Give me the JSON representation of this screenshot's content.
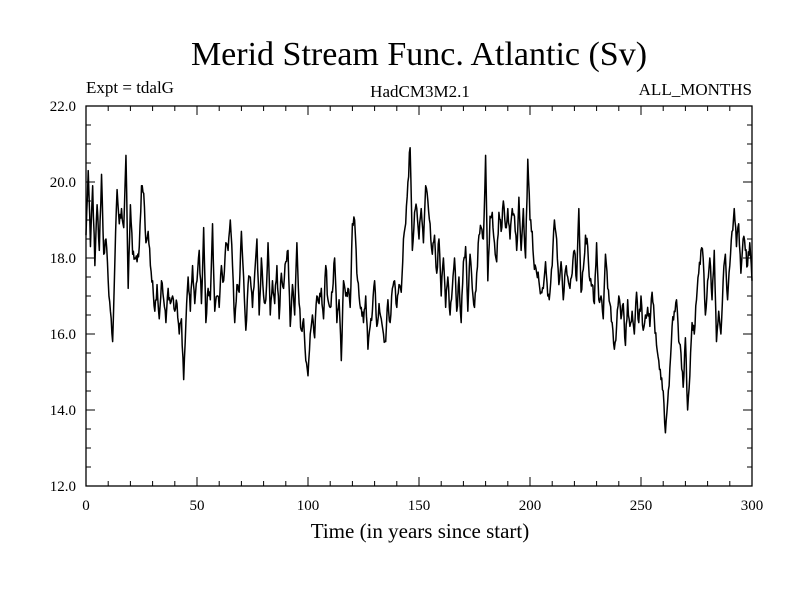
{
  "chart_data": {
    "type": "line",
    "title": "Merid Stream Func. Atlantic (Sv)",
    "left_label": "Expt = tdalG",
    "center_label": "HadCM3M2.1",
    "right_label": "ALL_MONTHS",
    "xlabel": "Time (in years since start)",
    "ylabel": "",
    "xlim": [
      0,
      300
    ],
    "ylim": [
      12.0,
      22.0
    ],
    "x_ticks": [
      "0",
      "50",
      "100",
      "150",
      "200",
      "250",
      "300"
    ],
    "y_ticks": [
      "12.0",
      "14.0",
      "16.0",
      "18.0",
      "20.0",
      "22.0"
    ],
    "grid": false,
    "series": [
      {
        "name": "Merid Stream Func. Atlantic",
        "keypoints": [
          [
            0,
            18.6
          ],
          [
            1,
            20.3
          ],
          [
            2,
            18.3
          ],
          [
            3,
            19.9
          ],
          [
            4,
            17.8
          ],
          [
            5,
            19.4
          ],
          [
            6,
            18.2
          ],
          [
            7,
            20.2
          ],
          [
            8,
            18.1
          ],
          [
            9,
            18.5
          ],
          [
            10,
            17.4
          ],
          [
            11,
            16.6
          ],
          [
            12,
            15.8
          ],
          [
            13,
            17.9
          ],
          [
            14,
            19.8
          ],
          [
            15,
            18.9
          ],
          [
            16,
            19.3
          ],
          [
            17,
            18.8
          ],
          [
            18,
            20.7
          ],
          [
            19,
            17.2
          ],
          [
            20,
            19.4
          ],
          [
            21,
            18.1
          ],
          [
            22,
            18.0
          ],
          [
            23,
            17.9
          ],
          [
            24,
            18.3
          ],
          [
            25,
            19.9
          ],
          [
            26,
            19.7
          ],
          [
            27,
            18.4
          ],
          [
            28,
            18.7
          ],
          [
            29,
            17.8
          ],
          [
            30,
            17.4
          ],
          [
            31,
            16.6
          ],
          [
            32,
            17.3
          ],
          [
            33,
            16.4
          ],
          [
            34,
            17.4
          ],
          [
            35,
            16.9
          ],
          [
            36,
            16.3
          ],
          [
            37,
            17.2
          ],
          [
            38,
            16.8
          ],
          [
            39,
            17.0
          ],
          [
            40,
            16.6
          ],
          [
            41,
            16.8
          ],
          [
            42,
            16.0
          ],
          [
            43,
            16.4
          ],
          [
            44,
            14.8
          ],
          [
            45,
            16.3
          ],
          [
            46,
            17.5
          ],
          [
            47,
            16.6
          ],
          [
            48,
            17.8
          ],
          [
            49,
            16.8
          ],
          [
            50,
            17.4
          ],
          [
            51,
            18.2
          ],
          [
            52,
            16.8
          ],
          [
            53,
            18.8
          ],
          [
            54,
            16.3
          ],
          [
            55,
            17.2
          ],
          [
            56,
            16.9
          ],
          [
            57,
            18.9
          ],
          [
            58,
            16.6
          ],
          [
            59,
            17.0
          ],
          [
            60,
            16.7
          ],
          [
            61,
            17.8
          ],
          [
            62,
            17.4
          ],
          [
            63,
            18.4
          ],
          [
            64,
            18.2
          ],
          [
            65,
            19.0
          ],
          [
            66,
            17.8
          ],
          [
            67,
            16.3
          ],
          [
            68,
            17.3
          ],
          [
            69,
            17.1
          ],
          [
            70,
            18.7
          ],
          [
            71,
            17.5
          ],
          [
            72,
            16.1
          ],
          [
            73,
            17.3
          ],
          [
            74,
            17.5
          ],
          [
            75,
            16.7
          ],
          [
            76,
            17.6
          ],
          [
            77,
            18.5
          ],
          [
            78,
            16.5
          ],
          [
            79,
            18.0
          ],
          [
            80,
            17.0
          ],
          [
            81,
            16.9
          ],
          [
            82,
            18.4
          ],
          [
            83,
            16.5
          ],
          [
            84,
            17.4
          ],
          [
            85,
            16.8
          ],
          [
            86,
            17.8
          ],
          [
            87,
            16.4
          ],
          [
            88,
            17.6
          ],
          [
            89,
            17.2
          ],
          [
            90,
            17.9
          ],
          [
            91,
            18.2
          ],
          [
            92,
            16.2
          ],
          [
            93,
            17.3
          ],
          [
            94,
            16.5
          ],
          [
            95,
            18.4
          ],
          [
            96,
            16.8
          ],
          [
            97,
            16.1
          ],
          [
            98,
            16.4
          ],
          [
            99,
            15.3
          ],
          [
            100,
            14.9
          ],
          [
            101,
            16.0
          ],
          [
            102,
            16.5
          ],
          [
            103,
            15.9
          ],
          [
            104,
            17.0
          ],
          [
            105,
            16.8
          ],
          [
            106,
            17.2
          ],
          [
            107,
            16.4
          ],
          [
            108,
            17.8
          ],
          [
            109,
            16.9
          ],
          [
            110,
            16.7
          ],
          [
            111,
            17.1
          ],
          [
            112,
            18.0
          ],
          [
            113,
            16.3
          ],
          [
            114,
            16.9
          ],
          [
            115,
            15.3
          ],
          [
            116,
            17.4
          ],
          [
            117,
            17.0
          ],
          [
            118,
            17.2
          ],
          [
            119,
            16.7
          ],
          [
            120,
            18.9
          ],
          [
            121,
            19.0
          ],
          [
            122,
            17.6
          ],
          [
            123,
            17.0
          ],
          [
            124,
            16.7
          ],
          [
            125,
            16.3
          ],
          [
            126,
            17.0
          ],
          [
            127,
            15.6
          ],
          [
            128,
            16.2
          ],
          [
            129,
            16.6
          ],
          [
            130,
            17.4
          ],
          [
            131,
            16.2
          ],
          [
            132,
            16.8
          ],
          [
            133,
            16.4
          ],
          [
            134,
            16.0
          ],
          [
            135,
            15.8
          ],
          [
            136,
            16.9
          ],
          [
            137,
            16.3
          ],
          [
            138,
            17.2
          ],
          [
            139,
            17.4
          ],
          [
            140,
            16.7
          ],
          [
            141,
            17.3
          ],
          [
            142,
            17.1
          ],
          [
            143,
            18.5
          ],
          [
            144,
            18.9
          ],
          [
            145,
            20.0
          ],
          [
            146,
            20.9
          ],
          [
            147,
            18.2
          ],
          [
            148,
            19.2
          ],
          [
            149,
            19.3
          ],
          [
            150,
            18.5
          ],
          [
            151,
            19.3
          ],
          [
            152,
            18.4
          ],
          [
            153,
            19.9
          ],
          [
            154,
            19.5
          ],
          [
            155,
            18.9
          ],
          [
            156,
            18.1
          ],
          [
            157,
            18.6
          ],
          [
            158,
            17.6
          ],
          [
            159,
            18.5
          ],
          [
            160,
            17.0
          ],
          [
            161,
            18.0
          ],
          [
            162,
            16.7
          ],
          [
            163,
            17.5
          ],
          [
            164,
            16.5
          ],
          [
            165,
            17.2
          ],
          [
            166,
            18.0
          ],
          [
            167,
            16.6
          ],
          [
            168,
            17.5
          ],
          [
            169,
            16.3
          ],
          [
            170,
            17.9
          ],
          [
            171,
            18.3
          ],
          [
            172,
            16.6
          ],
          [
            173,
            18.1
          ],
          [
            174,
            17.2
          ],
          [
            175,
            16.7
          ],
          [
            176,
            17.6
          ],
          [
            177,
            18.6
          ],
          [
            178,
            18.8
          ],
          [
            179,
            18.5
          ],
          [
            180,
            20.7
          ],
          [
            181,
            17.4
          ],
          [
            182,
            19.1
          ],
          [
            183,
            19.2
          ],
          [
            184,
            18.4
          ],
          [
            185,
            17.9
          ],
          [
            186,
            19.2
          ],
          [
            187,
            18.7
          ],
          [
            188,
            19.5
          ],
          [
            189,
            18.8
          ],
          [
            190,
            19.3
          ],
          [
            191,
            18.5
          ],
          [
            192,
            19.3
          ],
          [
            193,
            19.1
          ],
          [
            194,
            18.2
          ],
          [
            195,
            19.6
          ],
          [
            196,
            18.2
          ],
          [
            197,
            19.3
          ],
          [
            198,
            18.0
          ],
          [
            199,
            20.6
          ],
          [
            200,
            19.0
          ],
          [
            201,
            18.7
          ],
          [
            202,
            17.7
          ],
          [
            203,
            17.6
          ],
          [
            204,
            17.4
          ],
          [
            205,
            17.1
          ],
          [
            206,
            17.2
          ],
          [
            207,
            17.9
          ],
          [
            208,
            17.0
          ],
          [
            209,
            17.1
          ],
          [
            210,
            17.8
          ],
          [
            211,
            19.0
          ],
          [
            212,
            18.5
          ],
          [
            213,
            17.3
          ],
          [
            214,
            17.9
          ],
          [
            215,
            16.9
          ],
          [
            216,
            17.7
          ],
          [
            217,
            17.5
          ],
          [
            218,
            17.2
          ],
          [
            219,
            17.6
          ],
          [
            220,
            18.2
          ],
          [
            221,
            17.4
          ],
          [
            222,
            19.3
          ],
          [
            223,
            17.1
          ],
          [
            224,
            17.7
          ],
          [
            225,
            18.6
          ],
          [
            226,
            18.3
          ],
          [
            227,
            17.4
          ],
          [
            228,
            17.3
          ],
          [
            229,
            16.8
          ],
          [
            230,
            18.4
          ],
          [
            231,
            16.9
          ],
          [
            232,
            17.0
          ],
          [
            233,
            16.4
          ],
          [
            234,
            18.1
          ],
          [
            235,
            17.2
          ],
          [
            236,
            16.8
          ],
          [
            237,
            16.3
          ],
          [
            238,
            15.6
          ],
          [
            239,
            16.2
          ],
          [
            240,
            17.0
          ],
          [
            241,
            16.4
          ],
          [
            242,
            16.8
          ],
          [
            243,
            15.7
          ],
          [
            244,
            16.9
          ],
          [
            245,
            16.2
          ],
          [
            246,
            16.6
          ],
          [
            247,
            16.0
          ],
          [
            248,
            17.1
          ],
          [
            249,
            16.3
          ],
          [
            250,
            17.0
          ],
          [
            251,
            16.1
          ],
          [
            252,
            16.5
          ],
          [
            253,
            16.7
          ],
          [
            254,
            16.2
          ],
          [
            255,
            17.1
          ],
          [
            256,
            16.4
          ],
          [
            257,
            15.7
          ],
          [
            258,
            15.3
          ],
          [
            259,
            14.8
          ],
          [
            260,
            14.5
          ],
          [
            261,
            13.4
          ],
          [
            262,
            14.2
          ],
          [
            263,
            15.1
          ],
          [
            264,
            16.2
          ],
          [
            265,
            16.6
          ],
          [
            266,
            16.9
          ],
          [
            267,
            15.8
          ],
          [
            268,
            15.5
          ],
          [
            269,
            14.6
          ],
          [
            270,
            15.9
          ],
          [
            271,
            14.0
          ],
          [
            272,
            14.9
          ],
          [
            273,
            16.3
          ],
          [
            274,
            16.0
          ],
          [
            275,
            16.9
          ],
          [
            276,
            17.6
          ],
          [
            277,
            18.2
          ],
          [
            278,
            18.0
          ],
          [
            279,
            16.5
          ],
          [
            280,
            17.4
          ],
          [
            281,
            18.0
          ],
          [
            282,
            16.9
          ],
          [
            283,
            18.2
          ],
          [
            284,
            15.8
          ],
          [
            285,
            16.6
          ],
          [
            286,
            16.0
          ],
          [
            287,
            17.4
          ],
          [
            288,
            18.1
          ],
          [
            289,
            16.9
          ],
          [
            290,
            17.8
          ],
          [
            291,
            18.7
          ],
          [
            292,
            19.3
          ],
          [
            293,
            18.3
          ],
          [
            294,
            18.9
          ],
          [
            295,
            17.6
          ],
          [
            296,
            18.5
          ],
          [
            297,
            18.2
          ],
          [
            298,
            17.8
          ],
          [
            299,
            18.4
          ],
          [
            300,
            17.4
          ]
        ]
      }
    ]
  }
}
